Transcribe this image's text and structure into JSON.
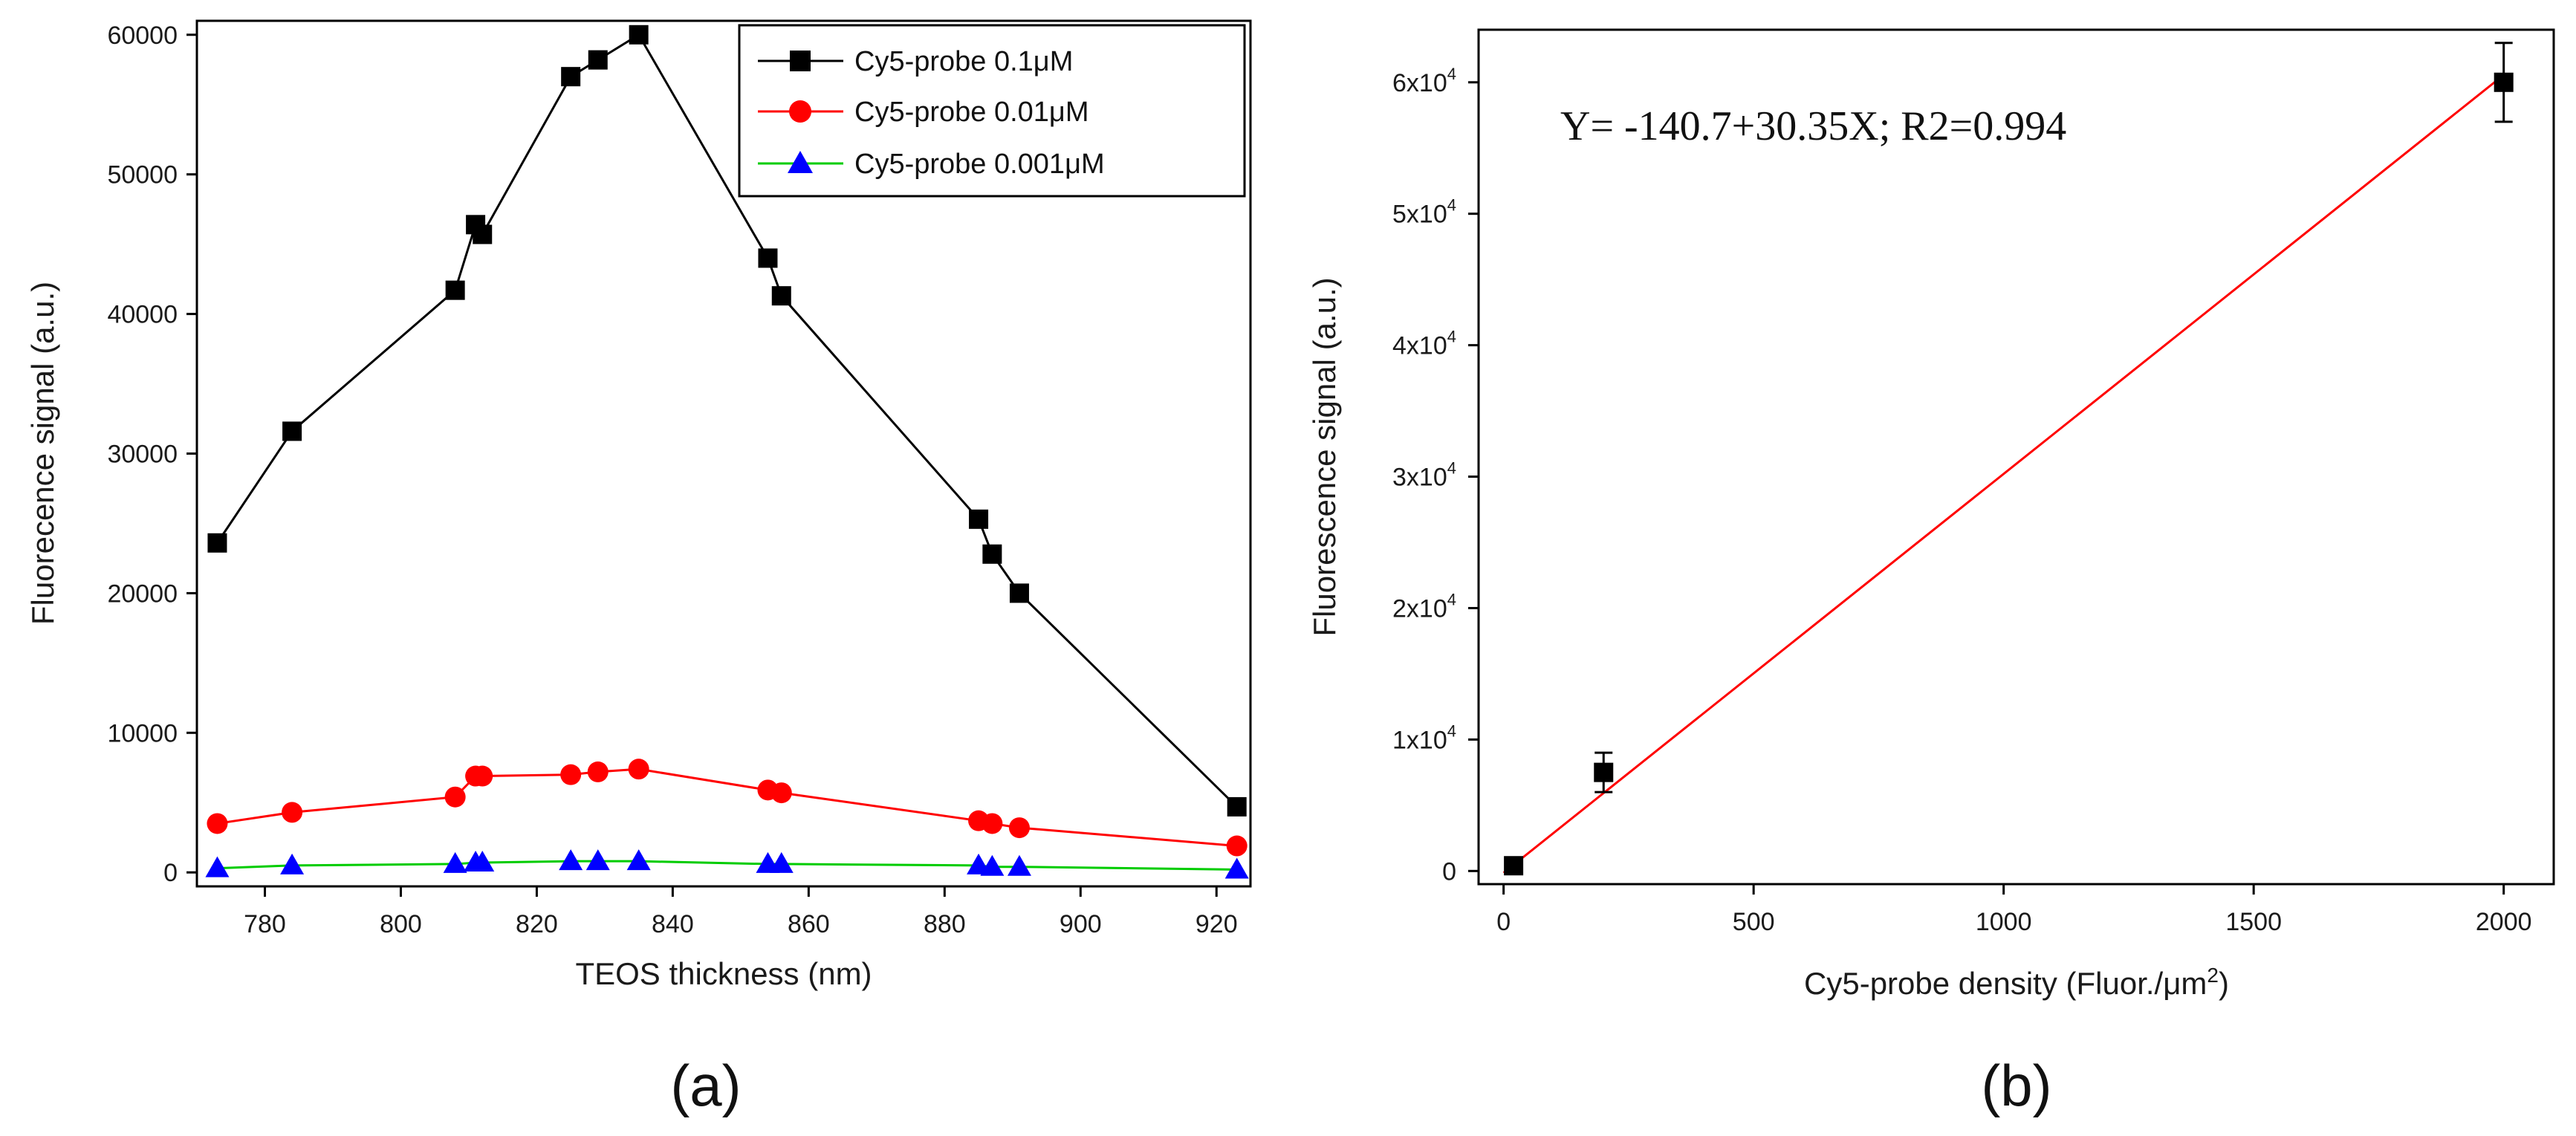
{
  "chart_data": [
    {
      "panel": "(a)",
      "type": "line",
      "xlabel": "TEOS thickness (nm)",
      "ylabel": "Fluorecence signal (a.u.)",
      "xlim": [
        770,
        925
      ],
      "ylim": [
        -1000,
        61000
      ],
      "xticks": [
        780,
        800,
        820,
        840,
        860,
        880,
        900,
        920
      ],
      "yticks": [
        0,
        10000,
        20000,
        30000,
        40000,
        50000,
        60000
      ],
      "grid": false,
      "legend_position": "top-right",
      "series": [
        {
          "name": "Cy5-probe 0.1μM",
          "color": "#000000",
          "marker": "square",
          "x": [
            773,
            784,
            808,
            811,
            812,
            825,
            829,
            835,
            854,
            856,
            885,
            887,
            891,
            923
          ],
          "y": [
            23600,
            31600,
            41700,
            46400,
            45700,
            57000,
            58200,
            60000,
            44000,
            41300,
            25300,
            22800,
            20000,
            4700
          ]
        },
        {
          "name": "Cy5-probe 0.01μM",
          "color": "#ff0000",
          "marker": "circle",
          "x": [
            773,
            784,
            808,
            811,
            812,
            825,
            829,
            835,
            854,
            856,
            885,
            887,
            891,
            923
          ],
          "y": [
            3500,
            4300,
            5400,
            6900,
            6900,
            7000,
            7200,
            7400,
            5900,
            5700,
            3700,
            3500,
            3200,
            1900
          ]
        },
        {
          "name": "Cy5-probe 0.001μM",
          "color": "#00cc00",
          "marker_color": "#0000ff",
          "marker": "triangle",
          "x": [
            773,
            784,
            808,
            811,
            812,
            825,
            829,
            835,
            854,
            856,
            885,
            887,
            891,
            923
          ],
          "y": [
            300,
            500,
            600,
            700,
            700,
            800,
            800,
            800,
            600,
            600,
            500,
            400,
            400,
            200
          ]
        }
      ]
    },
    {
      "panel": "(b)",
      "type": "scatter",
      "xlabel": "Cy5-probe density (Fluor./μm",
      "xlabel_sup": "2",
      "xlabel_close": ")",
      "ylabel": "Fluorescence signal (a.u.)",
      "xlim": [
        -50,
        2100
      ],
      "ylim": [
        -1000,
        64000
      ],
      "xticks": [
        0,
        500,
        1000,
        1500,
        2000
      ],
      "yticks": [
        {
          "value": 0,
          "label": "0"
        },
        {
          "value": 10000,
          "label": "1x10",
          "sup": "4"
        },
        {
          "value": 20000,
          "label": "2x10",
          "sup": "4"
        },
        {
          "value": 30000,
          "label": "3x10",
          "sup": "4"
        },
        {
          "value": 40000,
          "label": "4x10",
          "sup": "4"
        },
        {
          "value": 50000,
          "label": "5x10",
          "sup": "4"
        },
        {
          "value": 60000,
          "label": "6x10",
          "sup": "4"
        }
      ],
      "grid": false,
      "points": [
        {
          "x": 20,
          "y": 400,
          "err": 0
        },
        {
          "x": 200,
          "y": 7500,
          "err": 1500
        },
        {
          "x": 2000,
          "y": 60000,
          "err": 3000
        }
      ],
      "fit": {
        "intercept": -140.7,
        "slope": 30.35,
        "x_range": [
          0,
          2000
        ],
        "color": "#ff0000"
      },
      "annotation": "Y= -140.7+30.35X;  R2=0.994"
    }
  ]
}
